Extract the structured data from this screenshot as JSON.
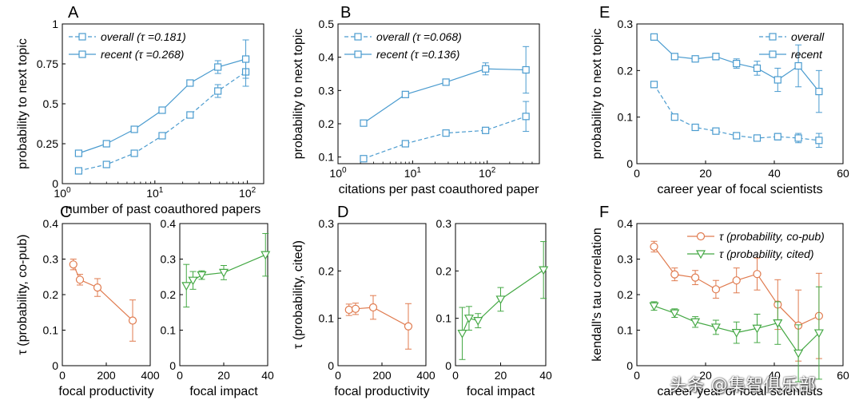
{
  "colors": {
    "blue": "#4a9bcf",
    "orange": "#e07b4f",
    "green": "#44a844",
    "axis": "#000000"
  },
  "watermark": "头条 @集智俱乐部",
  "chart_data": [
    {
      "panel": "A",
      "type": "line",
      "xscale": "log",
      "xlim": [
        1,
        150
      ],
      "ylim": [
        0,
        1
      ],
      "xticks": [
        1,
        10,
        100
      ],
      "xtick_labels": [
        "10^0",
        "10^1",
        "10^2"
      ],
      "yticks": [
        0,
        0.25,
        0.5,
        0.75,
        1
      ],
      "ytick_labels": [
        "0",
        "0.25",
        "0.5",
        "0.75",
        "1"
      ],
      "xlabel": "number of past coauthored papers",
      "ylabel": "probability to next topic",
      "legend": "top-left",
      "series": [
        {
          "name": "overall",
          "tau": "0.181",
          "color": "blue",
          "dash": true,
          "marker": "square",
          "x": [
            1.5,
            3,
            6,
            12,
            24,
            48,
            96
          ],
          "y": [
            0.08,
            0.12,
            0.19,
            0.3,
            0.43,
            0.58,
            0.7
          ],
          "err": [
            0.01,
            0.01,
            0.01,
            0.015,
            0.02,
            0.04,
            0.09
          ]
        },
        {
          "name": "recent",
          "tau": "0.268",
          "color": "blue",
          "dash": false,
          "marker": "square",
          "x": [
            1.5,
            3,
            6,
            12,
            24,
            48,
            96
          ],
          "y": [
            0.19,
            0.25,
            0.34,
            0.46,
            0.63,
            0.73,
            0.78
          ],
          "err": [
            0.01,
            0.01,
            0.015,
            0.015,
            0.02,
            0.04,
            0.12
          ]
        }
      ]
    },
    {
      "panel": "B",
      "type": "line",
      "xscale": "log",
      "xlim": [
        1,
        500
      ],
      "ylim": [
        0.08,
        0.5
      ],
      "xticks": [
        1,
        10,
        100
      ],
      "xtick_labels": [
        "10^0",
        "10^1",
        "10^2"
      ],
      "yticks": [
        0.1,
        0.2,
        0.3,
        0.4,
        0.5
      ],
      "ytick_labels": [
        "0.1",
        "0.2",
        "0.3",
        "0.4",
        "0.5"
      ],
      "xlabel": "citations per past coauthored paper",
      "ylabel": "probability to next topic",
      "legend": "top-left",
      "series": [
        {
          "name": "overall",
          "tau": "0.068",
          "color": "blue",
          "dash": true,
          "marker": "square",
          "x": [
            2.2,
            8,
            28,
            95,
            330
          ],
          "y": [
            0.095,
            0.14,
            0.172,
            0.18,
            0.222
          ],
          "err": [
            0.005,
            0.005,
            0.005,
            0.007,
            0.045
          ]
        },
        {
          "name": "recent",
          "tau": "0.136",
          "color": "blue",
          "dash": false,
          "marker": "square",
          "x": [
            2.2,
            8,
            28,
            95,
            330
          ],
          "y": [
            0.202,
            0.288,
            0.325,
            0.365,
            0.362
          ],
          "err": [
            0.007,
            0.005,
            0.006,
            0.018,
            0.07
          ]
        }
      ]
    },
    {
      "panel": "E",
      "type": "line",
      "xscale": "linear",
      "xlim": [
        0,
        60
      ],
      "ylim": [
        0,
        0.3
      ],
      "xticks": [
        0,
        20,
        40,
        60
      ],
      "xtick_labels": [
        "0",
        "20",
        "40",
        "60"
      ],
      "yticks": [
        0,
        0.1,
        0.2,
        0.3
      ],
      "ytick_labels": [
        "0",
        "0.1",
        "0.2",
        "0.3"
      ],
      "xlabel": "career year of focal scientists",
      "ylabel": "probability to next topic",
      "legend": "top-right",
      "series": [
        {
          "name": "overall",
          "tau": "",
          "color": "blue",
          "dash": true,
          "marker": "square",
          "x": [
            5,
            11,
            17,
            23,
            29,
            35,
            41,
            47,
            53
          ],
          "y": [
            0.17,
            0.1,
            0.078,
            0.07,
            0.06,
            0.055,
            0.058,
            0.055,
            0.05
          ],
          "err": [
            0.005,
            0.005,
            0.005,
            0.005,
            0.005,
            0.005,
            0.007,
            0.01,
            0.015
          ]
        },
        {
          "name": "recent",
          "tau": "",
          "color": "blue",
          "dash": false,
          "marker": "square",
          "x": [
            5,
            11,
            17,
            23,
            29,
            35,
            41,
            47,
            53
          ],
          "y": [
            0.272,
            0.23,
            0.225,
            0.23,
            0.215,
            0.205,
            0.18,
            0.21,
            0.155
          ],
          "err": [
            0.005,
            0.005,
            0.006,
            0.007,
            0.01,
            0.015,
            0.025,
            0.045,
            0.045
          ]
        }
      ]
    },
    {
      "panel": "C1",
      "type": "line",
      "xscale": "linear",
      "xlim": [
        0,
        400
      ],
      "ylim": [
        0,
        0.4
      ],
      "xticks": [
        0,
        200,
        400
      ],
      "xtick_labels": [
        "0",
        "200",
        "400"
      ],
      "yticks": [
        0,
        0.1,
        0.2,
        0.3,
        0.4
      ],
      "ytick_labels": [
        "0",
        "0.1",
        "0.2",
        "0.3",
        "0.4"
      ],
      "xlabel": "focal productivity",
      "ylabel": "τ (probability, co-pub)",
      "series": [
        {
          "name": "co-pub",
          "color": "orange",
          "dash": false,
          "marker": "circle",
          "x": [
            50,
            80,
            160,
            320
          ],
          "y": [
            0.285,
            0.242,
            0.22,
            0.127
          ],
          "err": [
            0.015,
            0.015,
            0.025,
            0.058
          ]
        }
      ]
    },
    {
      "panel": "C2",
      "type": "line",
      "xscale": "linear",
      "xlim": [
        0,
        40
      ],
      "ylim": [
        0,
        0.4
      ],
      "xticks": [
        0,
        20,
        40
      ],
      "xtick_labels": [
        "0",
        "20",
        "40"
      ],
      "yticks": [
        0,
        0.1,
        0.2,
        0.3,
        0.4
      ],
      "ytick_labels": [
        "0",
        "0.1",
        "0.2",
        "0.3",
        "0.4"
      ],
      "xlabel": "focal impact",
      "ylabel": "",
      "series": [
        {
          "name": "co-pub",
          "color": "green",
          "dash": false,
          "marker": "triangle",
          "x": [
            3,
            6,
            10,
            20,
            39
          ],
          "y": [
            0.225,
            0.24,
            0.255,
            0.262,
            0.312
          ],
          "err": [
            0.06,
            0.025,
            0.012,
            0.02,
            0.06
          ]
        }
      ]
    },
    {
      "panel": "D1",
      "type": "line",
      "xscale": "linear",
      "xlim": [
        0,
        400
      ],
      "ylim": [
        0,
        0.3
      ],
      "xticks": [
        0,
        200,
        400
      ],
      "xtick_labels": [
        "0",
        "200",
        "400"
      ],
      "yticks": [
        0,
        0.1,
        0.2,
        0.3
      ],
      "ytick_labels": [
        "0",
        "0.1",
        "0.2",
        "0.3"
      ],
      "xlabel": "focal productivity",
      "ylabel": "τ (probability, cited)",
      "series": [
        {
          "name": "cited",
          "color": "orange",
          "dash": false,
          "marker": "circle",
          "x": [
            50,
            80,
            160,
            320
          ],
          "y": [
            0.118,
            0.12,
            0.123,
            0.083
          ],
          "err": [
            0.012,
            0.012,
            0.025,
            0.048
          ]
        }
      ]
    },
    {
      "panel": "D2",
      "type": "line",
      "xscale": "linear",
      "xlim": [
        0,
        40
      ],
      "ylim": [
        0,
        0.3
      ],
      "xticks": [
        0,
        20,
        40
      ],
      "xtick_labels": [
        "0",
        "20",
        "40"
      ],
      "yticks": [
        0,
        0.1,
        0.2,
        0.3
      ],
      "ytick_labels": [
        "0",
        "0.1",
        "0.2",
        "0.3"
      ],
      "xlabel": "focal impact",
      "ylabel": "",
      "series": [
        {
          "name": "cited",
          "color": "green",
          "dash": false,
          "marker": "triangle",
          "x": [
            3,
            6,
            10,
            20,
            39
          ],
          "y": [
            0.068,
            0.1,
            0.095,
            0.14,
            0.202
          ],
          "err": [
            0.055,
            0.025,
            0.015,
            0.025,
            0.06
          ]
        }
      ]
    },
    {
      "panel": "F",
      "type": "line",
      "xscale": "linear",
      "xlim": [
        0,
        60
      ],
      "ylim": [
        0,
        0.4
      ],
      "xticks": [
        0,
        20,
        40,
        60
      ],
      "xtick_labels": [
        "0",
        "20",
        "40",
        "60"
      ],
      "yticks": [
        0,
        0.1,
        0.2,
        0.3,
        0.4
      ],
      "ytick_labels": [
        "0",
        "0.1",
        "0.2",
        "0.3",
        "0.4"
      ],
      "xlabel": "career year of focal scientists",
      "ylabel": "kendall's tau correlation",
      "legend": "top-right",
      "series": [
        {
          "name": "τ (probability, co-pub)",
          "color": "orange",
          "dash": false,
          "marker": "circle",
          "x": [
            5,
            11,
            17,
            23,
            29,
            35,
            41,
            47,
            53
          ],
          "y": [
            0.335,
            0.257,
            0.248,
            0.215,
            0.24,
            0.258,
            0.172,
            0.113,
            0.14
          ],
          "err": [
            0.015,
            0.018,
            0.02,
            0.025,
            0.035,
            0.045,
            0.07,
            0.1,
            0.12
          ]
        },
        {
          "name": "τ (probability, cited)",
          "color": "green",
          "dash": false,
          "marker": "triangle",
          "x": [
            5,
            11,
            17,
            23,
            29,
            35,
            41,
            47,
            53
          ],
          "y": [
            0.168,
            0.148,
            0.123,
            0.108,
            0.093,
            0.105,
            0.12,
            0.035,
            0.092
          ],
          "err": [
            0.012,
            0.012,
            0.015,
            0.02,
            0.03,
            0.04,
            0.06,
            0.08,
            0.13
          ]
        }
      ]
    }
  ]
}
